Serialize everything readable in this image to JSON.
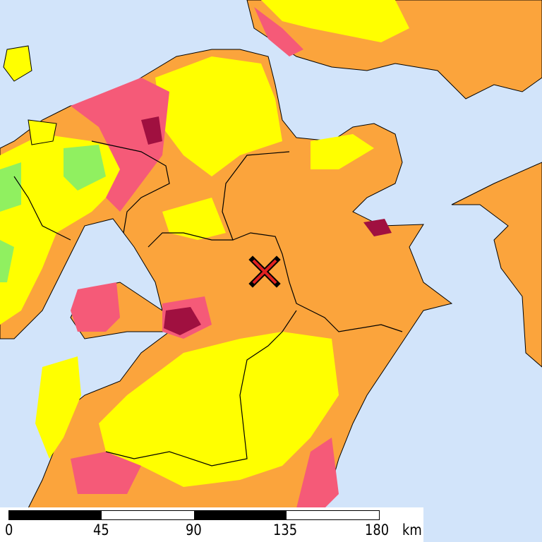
{
  "map": {
    "colors": {
      "sea": "#d2e4fa",
      "land_base": "#fba43c",
      "intensity_low": "#ffff00",
      "intensity_lowest": "#90f060",
      "intensity_high": "#f55a78",
      "intensity_highest": "#a01040",
      "boundary": "#000000"
    },
    "epicenter": {
      "icon": "x-mark-icon",
      "color": "#e02020"
    }
  },
  "scale_bar": {
    "labels": [
      "0",
      "45",
      "90",
      "135",
      "180"
    ],
    "unit": "km"
  }
}
